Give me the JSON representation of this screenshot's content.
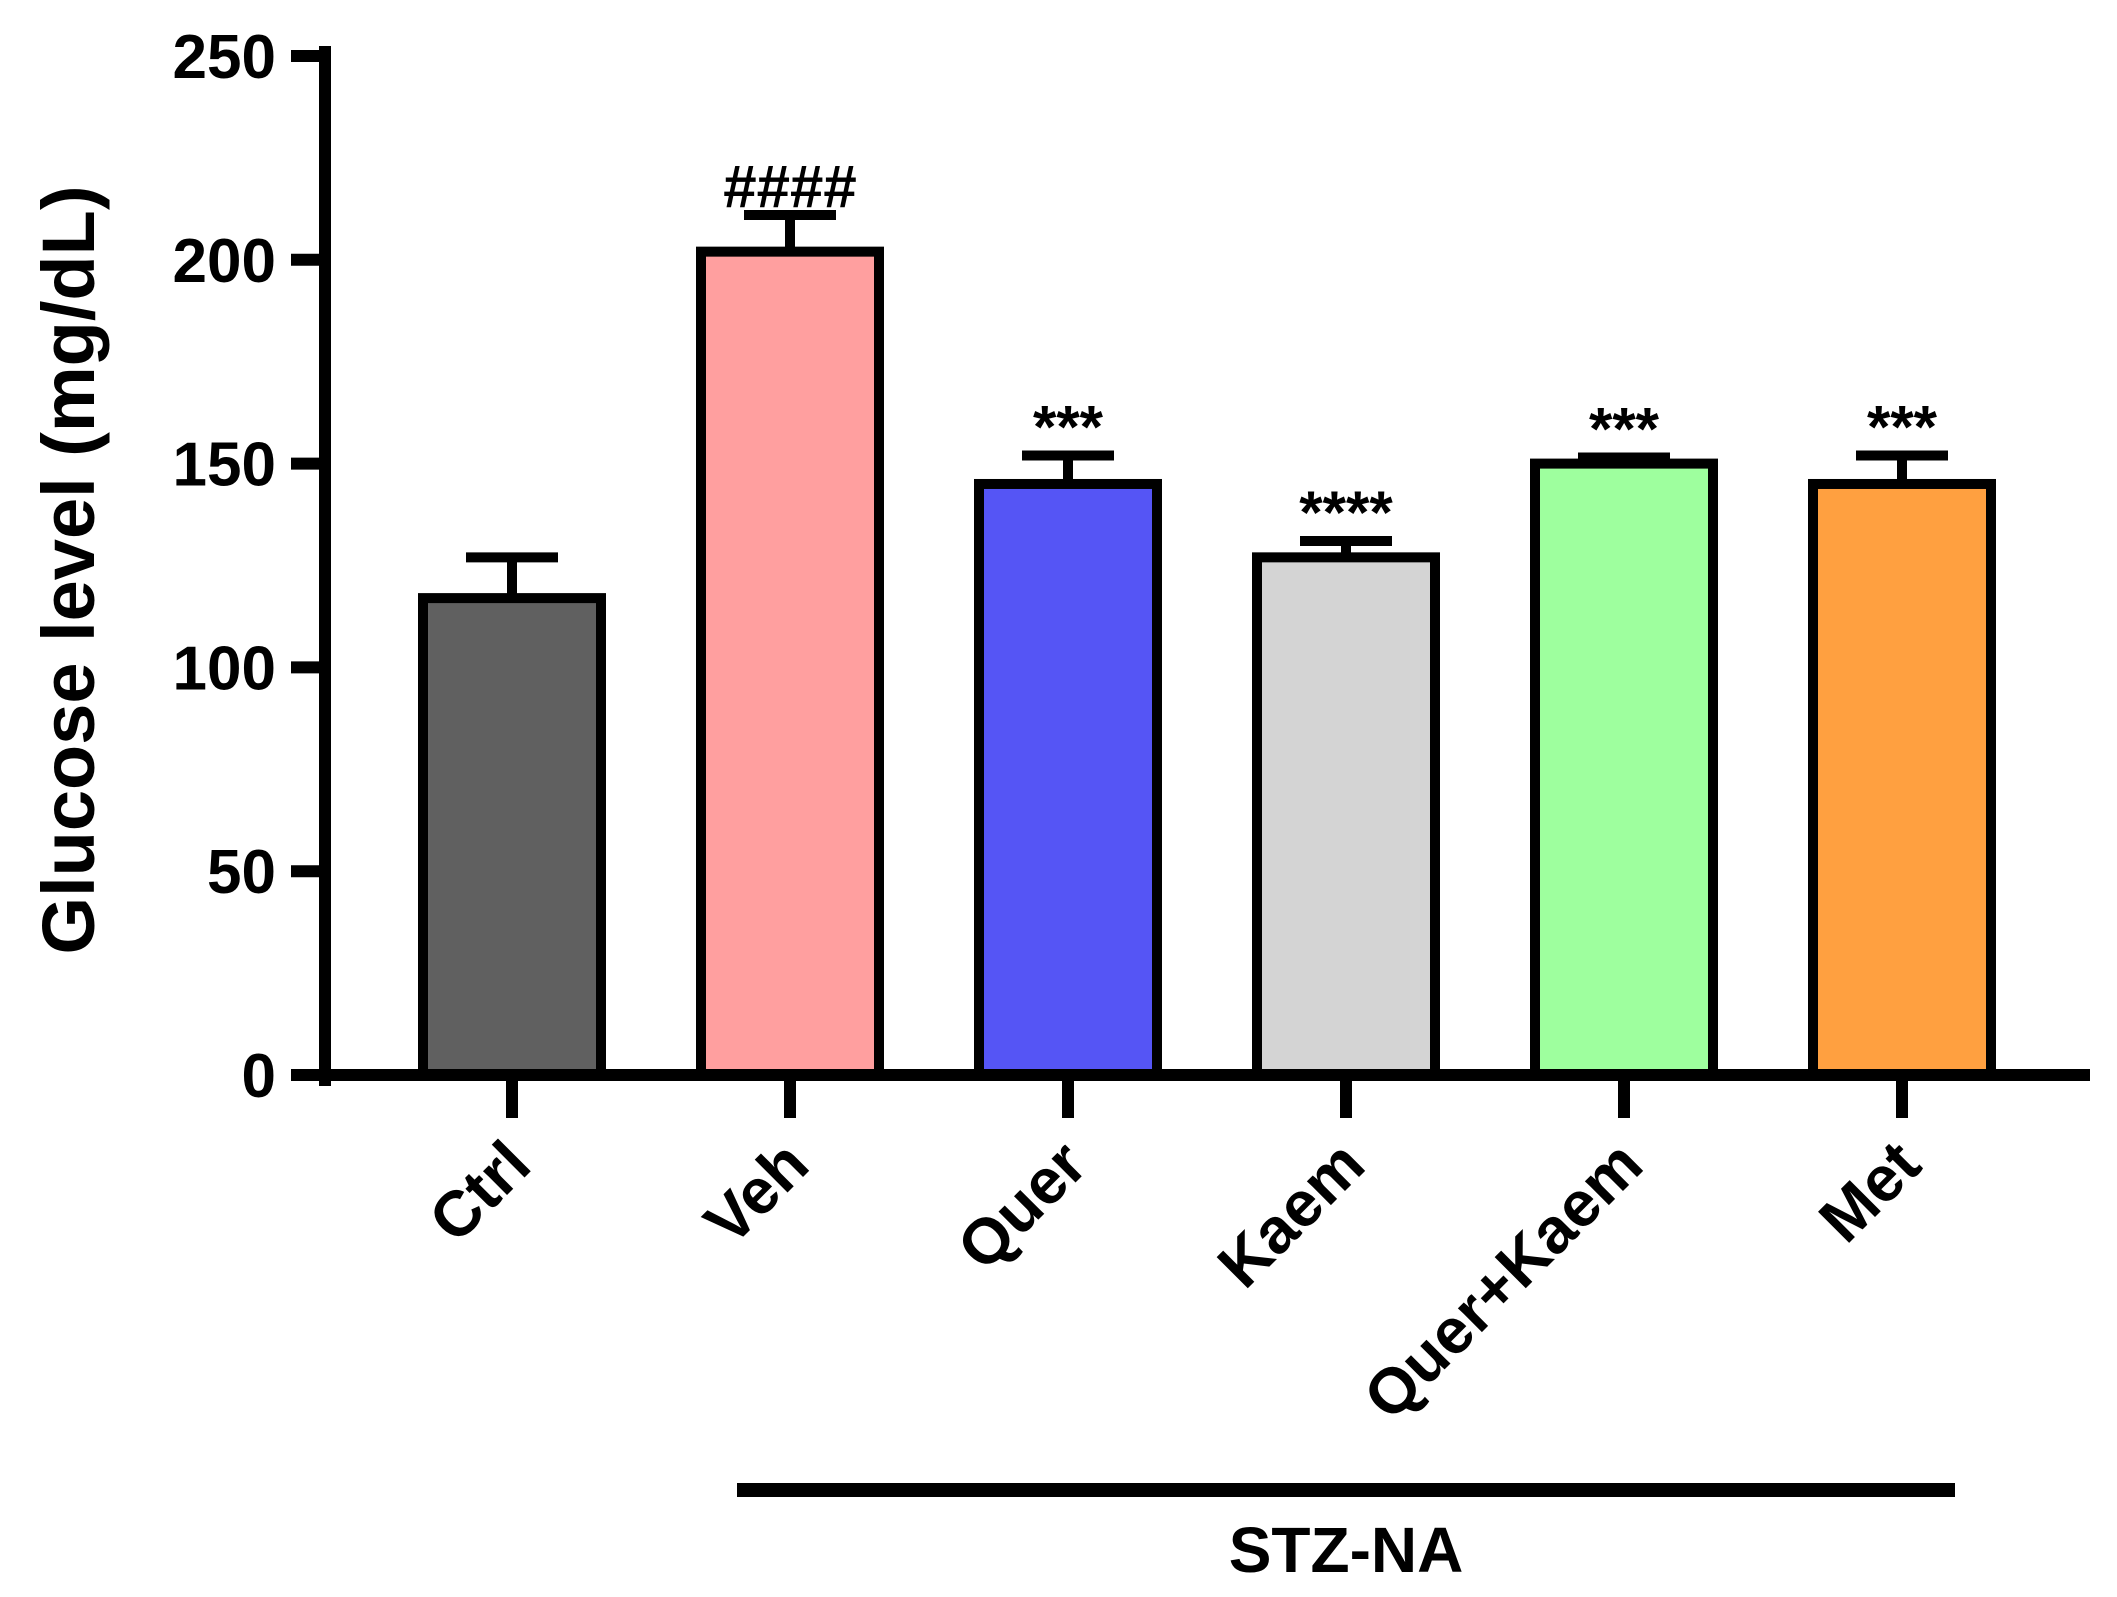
{
  "chart_data": {
    "type": "bar",
    "title": "",
    "xlabel": "",
    "ylabel": "Glucose level (mg/dL)",
    "ylim": [
      0,
      250
    ],
    "yticks": [
      0,
      50,
      100,
      150,
      200,
      250
    ],
    "grid": false,
    "legend": "none",
    "categories": [
      "Ctrl",
      "Veh",
      "Quer",
      "Kaem",
      "Quer+Kaem",
      "Met"
    ],
    "values": [
      117,
      202,
      145,
      127,
      150,
      145
    ],
    "errors": [
      10,
      9,
      7,
      4,
      1.5,
      7
    ],
    "significance": [
      "",
      "####",
      "***",
      "****",
      "***",
      "***"
    ],
    "colors": [
      "#606060",
      "#ff9f9f",
      "#5555f5",
      "#d4d4d4",
      "#9eff9e",
      "#ffa040"
    ],
    "group_bracket": {
      "label": "STZ-NA",
      "from_category": "Veh",
      "to_category": "Met"
    }
  }
}
